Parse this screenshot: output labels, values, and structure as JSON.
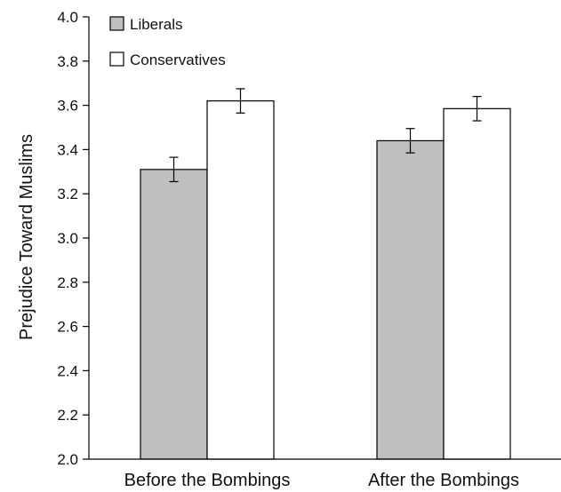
{
  "chart_data": {
    "type": "bar",
    "title": "",
    "xlabel": "",
    "ylabel": "Prejudice Toward Muslims",
    "categories": [
      "Before the Bombings",
      "After the Bombings"
    ],
    "series": [
      {
        "name": "Liberals",
        "color": "#bfbfc1",
        "values": [
          3.31,
          3.44
        ],
        "error": [
          0.055,
          0.055
        ]
      },
      {
        "name": "Conservatives",
        "color": "#ffffff",
        "values": [
          3.62,
          3.585
        ],
        "error": [
          0.055,
          0.055
        ]
      }
    ],
    "ylim": [
      2.0,
      4.0
    ],
    "yticks": [
      "2.0",
      "2.2",
      "2.4",
      "2.6",
      "2.8",
      "3.0",
      "3.2",
      "3.4",
      "3.6",
      "3.8",
      "4.0"
    ],
    "grid": false,
    "legend_position": "top-left"
  }
}
